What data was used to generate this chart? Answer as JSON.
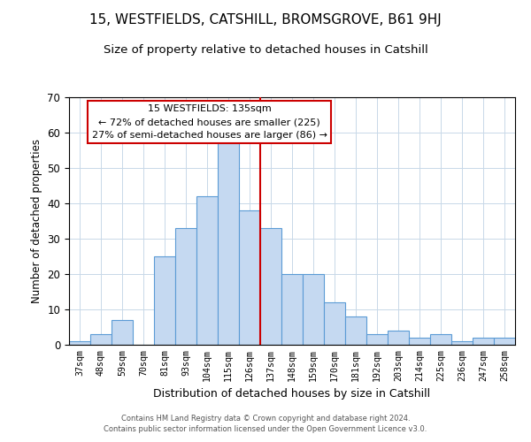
{
  "title": "15, WESTFIELDS, CATSHILL, BROMSGROVE, B61 9HJ",
  "subtitle": "Size of property relative to detached houses in Catshill",
  "xlabel": "Distribution of detached houses by size in Catshill",
  "ylabel": "Number of detached properties",
  "bin_labels": [
    "37sqm",
    "48sqm",
    "59sqm",
    "70sqm",
    "81sqm",
    "93sqm",
    "104sqm",
    "115sqm",
    "126sqm",
    "137sqm",
    "148sqm",
    "159sqm",
    "170sqm",
    "181sqm",
    "192sqm",
    "203sqm",
    "214sqm",
    "225sqm",
    "236sqm",
    "247sqm",
    "258sqm"
  ],
  "bar_heights": [
    1,
    3,
    7,
    0,
    25,
    33,
    42,
    57,
    38,
    33,
    20,
    20,
    12,
    8,
    3,
    4,
    2,
    3,
    1,
    2,
    2
  ],
  "bar_color": "#c5d9f1",
  "bar_edge_color": "#5b9bd5",
  "vline_pos": 8.5,
  "vline_color": "#cc0000",
  "ylim": [
    0,
    70
  ],
  "yticks": [
    0,
    10,
    20,
    30,
    40,
    50,
    60,
    70
  ],
  "annotation_title": "15 WESTFIELDS: 135sqm",
  "annotation_line1": "← 72% of detached houses are smaller (225)",
  "annotation_line2": "27% of semi-detached houses are larger (86) →",
  "annotation_box_color": "#ffffff",
  "annotation_box_edge": "#cc0000",
  "footer_line1": "Contains HM Land Registry data © Crown copyright and database right 2024.",
  "footer_line2": "Contains public sector information licensed under the Open Government Licence v3.0.",
  "background_color": "#ffffff",
  "grid_color": "#c8d8e8",
  "title_fontsize": 11,
  "subtitle_fontsize": 9.5
}
